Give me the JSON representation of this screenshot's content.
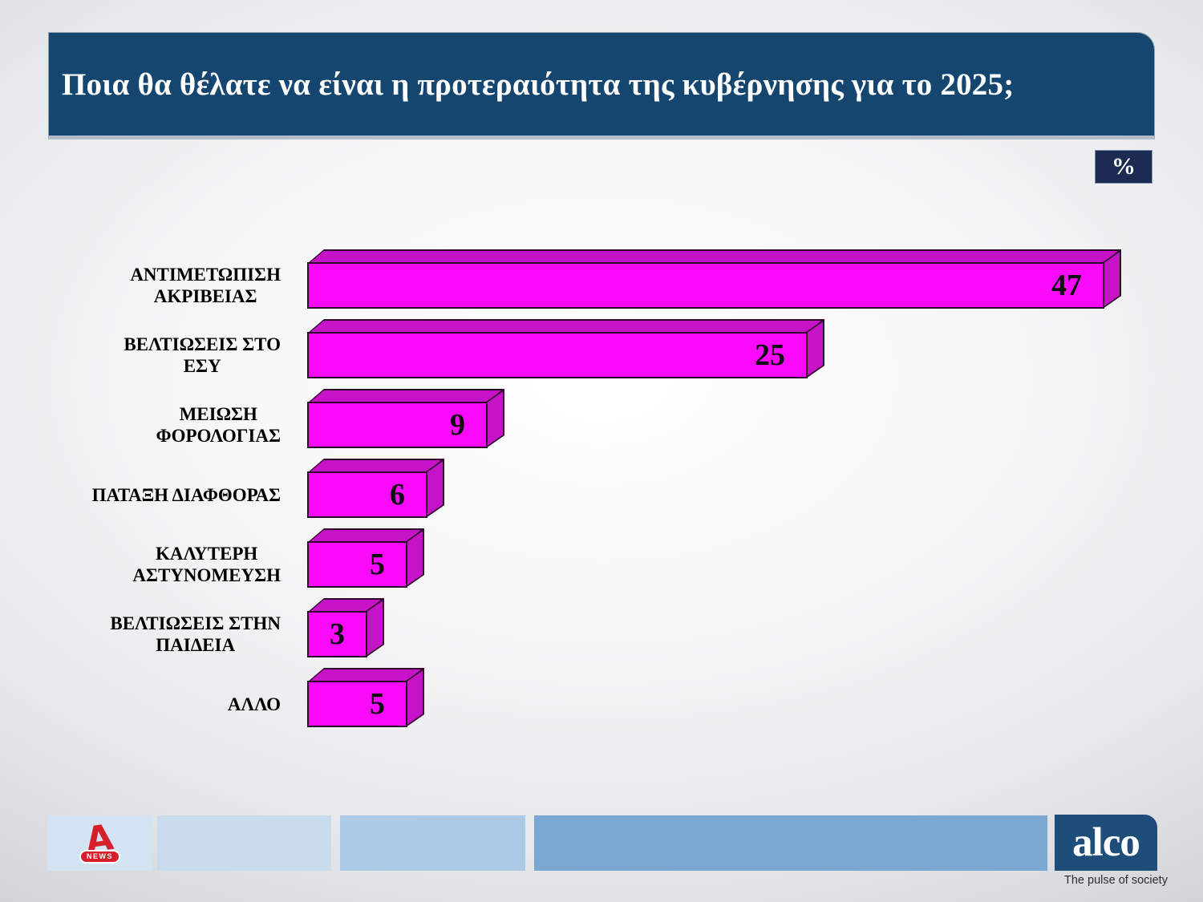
{
  "header": {
    "title": "Ποια θα θέλατε να είναι η προτεραιότητα της κυβέρνησης για το 2025;",
    "unit": "%"
  },
  "chart_data": {
    "type": "bar",
    "orientation": "horizontal",
    "title": "Ποια θα θέλατε να είναι η προτεραιότητα της κυβέρνησης για το 2025;",
    "unit": "%",
    "categories": [
      "ΑΝΤΙΜΕΤΩΠΙΣΗ ΑΚΡΙΒΕΙΑΣ",
      "ΒΕΛΤΙΩΣΕΙΣ ΣΤΟ ΕΣΥ",
      "ΜΕΙΩΣΗ ΦΟΡΟΛΟΓΙΑΣ",
      "ΠΑΤΑΞΗ ΔΙΑΦΘΟΡΑΣ",
      "ΚΑΛΥΤΕΡΗ ΑΣΤΥΝΟΜΕΥΣΗ",
      "ΒΕΛΤΙΩΣΕΙΣ ΣΤΗΝ ΠΑΙΔΕΙΑ",
      "ΑΛΛΟ"
    ],
    "display_labels": [
      "ΑΝΤΙΜΕΤΩΠΙΣΗ\nΑΚΡΙΒΕΙΑΣ",
      "ΒΕΛΤΙΩΣΕΙΣ ΣΤΟ\nΕΣΥ",
      "ΜΕΙΩΣΗ\nΦΟΡΟΛΟΓΙΑΣ",
      "ΠΑΤΑΞΗ ΔΙΑΦΘΟΡΑΣ",
      "ΚΑΛΥΤΕΡΗ\nΑΣΤΥΝΟΜΕΥΣΗ",
      "ΒΕΛΤΙΩΣΕΙΣ ΣΤΗΝ\nΠΑΙΔΕΙΑ",
      "ΑΛΛΟ"
    ],
    "values": [
      47,
      25,
      9,
      6,
      5,
      3,
      5
    ],
    "value_label_position": "inside-end",
    "xlim": [
      0,
      47
    ],
    "grid": false,
    "legend": false
  },
  "footer": {
    "alpha_letter": "A",
    "alpha_news_label": "NEWS",
    "alco_name": "alco",
    "alco_tagline": "The pulse of society"
  },
  "colors": {
    "header-bg": "#15466f",
    "badge-bg": "#1b2b52",
    "bar-front": "#fa0afa",
    "bar-shade": "#c713c7",
    "bar-outline": "#30082e",
    "footer-tile-1": "#d3e3f1",
    "footer-tile-2": "#c8dcee",
    "footer-tile-3": "#accae6",
    "footer-tile-4": "#7ba8d3",
    "alco-bg": "#1d4d78",
    "alpha-red": "#d5202c"
  }
}
